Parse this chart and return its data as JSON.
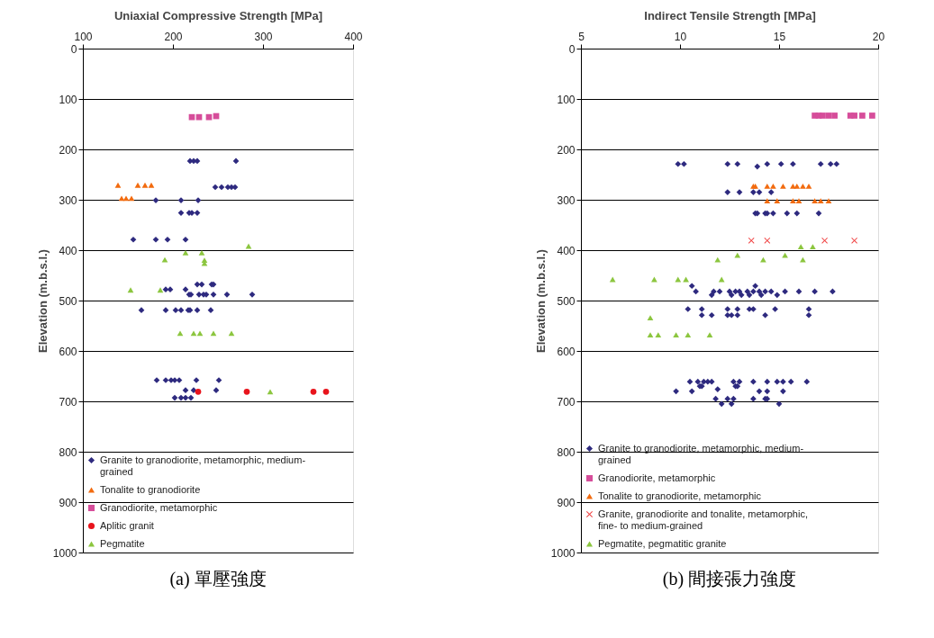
{
  "chart_data": [
    {
      "type": "scatter",
      "title": "(a) 單壓強度",
      "xlabel": "Uniaxial Compressive Strength [MPa]",
      "ylabel": "Elevation (m.b.s.l.)",
      "xlim": [
        100,
        400
      ],
      "xticks": [
        100,
        200,
        300,
        400
      ],
      "ylim": [
        1000,
        0
      ],
      "yticks": [
        0,
        100,
        200,
        300,
        400,
        500,
        600,
        700,
        800,
        900,
        1000
      ],
      "grid": "y",
      "legend": "bottom left",
      "series": [
        {
          "name": "Granite to granodiorite, metamorphic, medium-grained",
          "color": "#2e2a7f",
          "marker": "diamond",
          "x": [
            219,
            223,
            227,
            270,
            247,
            254,
            261,
            265,
            269,
            181,
            209,
            228,
            209,
            218,
            221,
            227,
            156,
            181,
            194,
            214,
            227,
            232,
            243,
            245,
            192,
            197,
            214,
            218,
            220,
            229,
            234,
            237,
            245,
            260,
            288,
            165,
            192,
            203,
            209,
            217,
            219,
            227,
            242,
            182,
            192,
            198,
            202,
            207,
            226,
            251,
            214,
            223,
            248,
            202,
            209,
            214,
            220
          ],
          "values": [
            223,
            223,
            223,
            223,
            275,
            275,
            275,
            275,
            275,
            301,
            301,
            301,
            326,
            326,
            326,
            326,
            379,
            379,
            379,
            379,
            468,
            468,
            468,
            468,
            478,
            478,
            478,
            488,
            488,
            488,
            488,
            488,
            488,
            488,
            488,
            519,
            519,
            519,
            519,
            519,
            519,
            519,
            519,
            658,
            658,
            658,
            658,
            658,
            658,
            658,
            678,
            678,
            678,
            693,
            693,
            693,
            693
          ]
        },
        {
          "name": "Tonalite to granodiorite",
          "color": "#f26b0f",
          "marker": "triangle",
          "x": [
            139,
            161,
            169,
            176,
            143,
            148,
            154
          ],
          "values": [
            271,
            271,
            271,
            271,
            297,
            297,
            297
          ]
        },
        {
          "name": "Granodiorite, metamorphic",
          "color": "#d64d9a",
          "marker": "square",
          "x": [
            221,
            229,
            240,
            248
          ],
          "values": [
            136,
            136,
            136,
            134
          ]
        },
        {
          "name": "Aplitic granit",
          "color": "#e8141c",
          "marker": "circle",
          "x": [
            228,
            282,
            356,
            370
          ],
          "values": [
            681,
            681,
            681,
            681
          ]
        },
        {
          "name": "Pegmatite",
          "color": "#8cc63f",
          "marker": "triangle",
          "x": [
            284,
            214,
            232,
            191,
            235,
            235,
            153,
            186,
            208,
            223,
            230,
            245,
            265,
            308
          ],
          "values": [
            392,
            405,
            405,
            419,
            420,
            426,
            479,
            479,
            565,
            565,
            565,
            565,
            565,
            681
          ]
        }
      ]
    },
    {
      "type": "scatter",
      "title": "(b) 間接張力強度",
      "xlabel": "Indirect Tensile Strength [MPa]",
      "ylabel": "Elevation (m.b.s.l.)",
      "xlim": [
        5,
        20
      ],
      "xticks": [
        5,
        10,
        15,
        20
      ],
      "ylim": [
        1000,
        0
      ],
      "yticks": [
        0,
        100,
        200,
        300,
        400,
        500,
        600,
        700,
        800,
        900,
        1000
      ],
      "grid": "y",
      "legend": "bottom left",
      "series": [
        {
          "name": "Granite to granodiorite, metamorphic, medium-grained",
          "color": "#2e2a7f",
          "marker": "diamond",
          "x": [
            9.9,
            10.2,
            12.4,
            12.9,
            14.4,
            15.1,
            15.7,
            17.1,
            17.6,
            17.9,
            13.9,
            12.4,
            13.0,
            13.7,
            14.0,
            14.6,
            13.8,
            13.9,
            14.3,
            14.4,
            14.7,
            15.4,
            15.9,
            17.0,
            10.6,
            13.8,
            10.8,
            11.7,
            12.0,
            12.5,
            12.8,
            13.0,
            13.4,
            13.7,
            14.0,
            14.3,
            14.6,
            15.3,
            16.0,
            16.8,
            17.7,
            11.6,
            12.6,
            13.1,
            13.5,
            14.1,
            14.9,
            10.4,
            11.1,
            12.4,
            12.9,
            13.5,
            13.7,
            14.8,
            16.5,
            11.1,
            11.6,
            12.4,
            12.6,
            12.9,
            14.3,
            16.5,
            10.5,
            10.9,
            11.2,
            11.4,
            11.6,
            12.7,
            13.0,
            13.7,
            14.4,
            14.9,
            15.2,
            15.6,
            16.4,
            11.0,
            11.1,
            12.8,
            12.9,
            9.8,
            10.6,
            14.0,
            14.4,
            15.2,
            11.9,
            11.8,
            12.4,
            12.7,
            13.7,
            14.3,
            14.4,
            12.1,
            12.6,
            15.0
          ],
          "values": [
            229,
            229,
            229,
            229,
            229,
            229,
            229,
            229,
            229,
            229,
            234,
            285,
            285,
            285,
            285,
            285,
            327,
            327,
            327,
            327,
            327,
            327,
            327,
            327,
            471,
            471,
            482,
            482,
            482,
            482,
            482,
            482,
            482,
            482,
            482,
            482,
            482,
            482,
            482,
            482,
            482,
            489,
            489,
            489,
            489,
            489,
            489,
            517,
            517,
            517,
            517,
            517,
            517,
            517,
            517,
            529,
            529,
            529,
            529,
            529,
            529,
            529,
            661,
            661,
            661,
            661,
            661,
            661,
            661,
            661,
            661,
            661,
            661,
            661,
            661,
            670,
            670,
            670,
            670,
            680,
            680,
            680,
            680,
            680,
            676,
            695,
            695,
            695,
            695,
            695,
            695,
            705,
            705,
            705
          ]
        },
        {
          "name": "Granodiorite, metamorphic",
          "color": "#d64d9a",
          "marker": "square",
          "x": [
            16.8,
            17.0,
            17.2,
            17.5,
            17.8,
            18.6,
            18.8,
            19.2,
            19.7
          ],
          "values": [
            133,
            133,
            133,
            133,
            133,
            133,
            133,
            133,
            133
          ]
        },
        {
          "name": "Tonalite to granodiorite, metamorphic",
          "color": "#f26b0f",
          "marker": "triangle",
          "x": [
            13.7,
            13.8,
            14.4,
            14.7,
            15.2,
            15.7,
            15.9,
            16.2,
            16.5,
            14.4,
            14.9,
            15.7,
            16.0,
            16.8,
            17.1,
            17.5
          ],
          "values": [
            273,
            273,
            273,
            273,
            273,
            273,
            273,
            273,
            273,
            302,
            302,
            302,
            302,
            302,
            302,
            302
          ]
        },
        {
          "name": "Granite, granodiorite and tonalite, metamorphic, fine- to medium-grained",
          "color": "#f04040",
          "marker": "cross",
          "x": [
            13.6,
            14.4,
            17.3,
            18.8
          ],
          "values": [
            381,
            381,
            381,
            381
          ]
        },
        {
          "name": "Pegmatite, pegmatitic granite",
          "color": "#8cc63f",
          "marker": "triangle",
          "x": [
            16.1,
            16.7,
            12.9,
            15.3,
            11.9,
            14.2,
            16.2,
            6.6,
            8.7,
            9.9,
            10.3,
            12.1,
            8.5,
            8.5,
            8.9,
            9.8,
            10.4,
            11.5
          ],
          "values": [
            393,
            393,
            410,
            410,
            419,
            419,
            419,
            458,
            458,
            458,
            458,
            458,
            534,
            568,
            568,
            568,
            568,
            568
          ]
        }
      ]
    }
  ]
}
